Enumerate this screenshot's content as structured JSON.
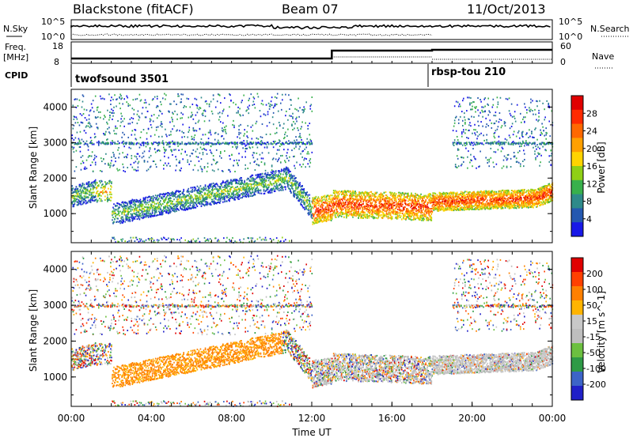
{
  "header": {
    "station": "Blackstone (fitACF)",
    "beam": "Beam 07",
    "date": "11/Oct/2013"
  },
  "noise_panel": {
    "left_label": "N.Sky",
    "right_label": "N.Search",
    "left_ticks": [
      "10^5",
      "10^0"
    ],
    "right_ticks": [
      "10^5",
      "10^0"
    ]
  },
  "freq_panel": {
    "left_label_1": "Freq.",
    "left_label_2": "[MHz]",
    "right_label": "Nave",
    "left_ticks": [
      "18",
      "8"
    ],
    "right_ticks": [
      "60",
      "0"
    ]
  },
  "cpid_panel": {
    "label": "CPID",
    "programs": [
      {
        "name": "twofsound 3501",
        "start_hour": 0
      },
      {
        "name": "rbsp-tou 210",
        "start_hour": 18
      }
    ]
  },
  "chart_data": [
    {
      "type": "heatmap",
      "name": "power",
      "ylabel": "Slant Range [km]",
      "colorbar_label": "Power [dB]",
      "colorbar_ticks": [
        "28",
        "24",
        "20",
        "16",
        "12",
        "8",
        "4"
      ],
      "colorbar_range": [
        0,
        32
      ],
      "yticks": [
        "4000",
        "3000",
        "2000",
        "1000"
      ],
      "ylim": [
        180,
        4500
      ],
      "xlim": [
        0,
        24
      ],
      "colors": [
        "#1818e8",
        "#2458b0",
        "#2e8a8a",
        "#38b04c",
        "#8fd016",
        "#ffd400",
        "#ffa000",
        "#ff6800",
        "#ff2a00",
        "#e00000"
      ]
    },
    {
      "type": "heatmap",
      "name": "velocity",
      "ylabel": "Slant Range [km]",
      "colorbar_label": "Velocity [m s^-1]",
      "colorbar_ticks": [
        "200",
        "100",
        "50",
        "15",
        "-15",
        "-50",
        "-100",
        "-200"
      ],
      "colorbar_range": [
        -250,
        250
      ],
      "yticks": [
        "4000",
        "3000",
        "2000",
        "1000"
      ],
      "ylim": [
        180,
        4500
      ],
      "xlim": [
        0,
        24
      ],
      "colors": [
        "#2020c8",
        "#3c64c8",
        "#2e9a46",
        "#6cc040",
        "#bebebe",
        "#c8c8c8",
        "#ffb400",
        "#ff8000",
        "#ff4000",
        "#e00000"
      ]
    }
  ],
  "xaxis": {
    "ticks": [
      "00:00",
      "04:00",
      "08:00",
      "12:00",
      "16:00",
      "20:00",
      "00:00"
    ],
    "label": "Time UT"
  }
}
